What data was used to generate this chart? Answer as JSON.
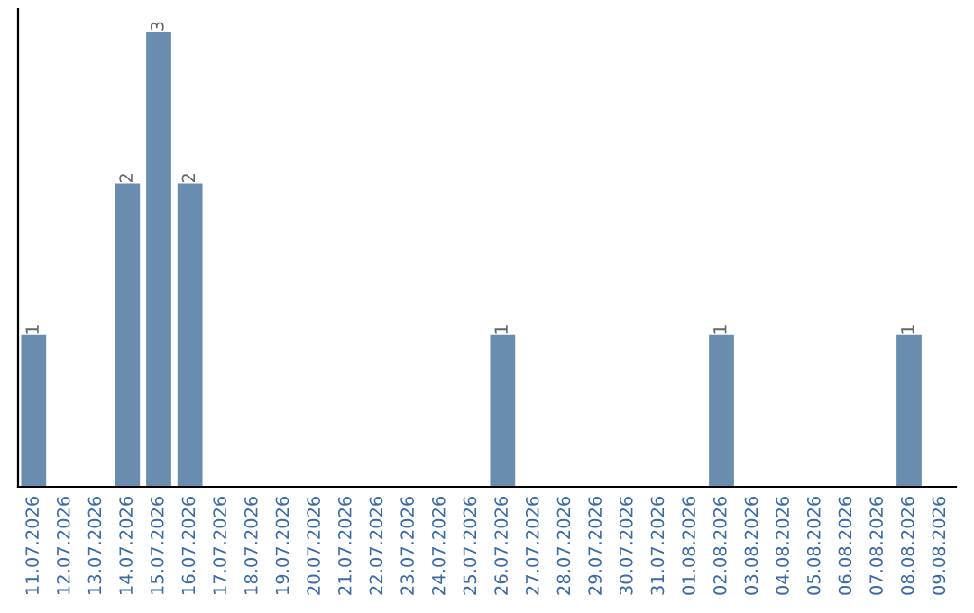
{
  "chart_data": {
    "type": "bar",
    "categories": [
      "11.07.2026",
      "12.07.2026",
      "13.07.2026",
      "14.07.2026",
      "15.07.2026",
      "16.07.2026",
      "17.07.2026",
      "18.07.2026",
      "19.07.2026",
      "20.07.2026",
      "21.07.2026",
      "22.07.2026",
      "23.07.2026",
      "24.07.2026",
      "25.07.2026",
      "26.07.2026",
      "27.07.2026",
      "28.07.2026",
      "29.07.2026",
      "30.07.2026",
      "31.07.2026",
      "01.08.2026",
      "02.08.2026",
      "03.08.2026",
      "04.08.2026",
      "05.08.2026",
      "06.08.2026",
      "07.08.2026",
      "08.08.2026",
      "09.08.2026"
    ],
    "values": [
      1,
      0,
      0,
      2,
      3,
      2,
      0,
      0,
      0,
      0,
      0,
      0,
      0,
      0,
      0,
      1,
      0,
      0,
      0,
      0,
      0,
      0,
      1,
      0,
      0,
      0,
      0,
      0,
      1,
      0
    ],
    "value_labels": [
      "1",
      null,
      null,
      "2",
      "3",
      "2",
      null,
      null,
      null,
      null,
      null,
      null,
      null,
      null,
      null,
      "1",
      null,
      null,
      null,
      null,
      null,
      null,
      "1",
      null,
      null,
      null,
      null,
      null,
      "1",
      null
    ],
    "color": "#6a8caf",
    "tick_labels": "x",
    "grid": false,
    "legend": false
  }
}
